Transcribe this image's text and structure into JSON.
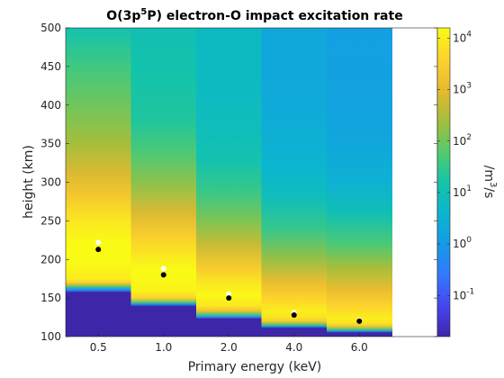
{
  "chart_data": {
    "type": "heatmap",
    "title": "O(3p",
    "title_sup": "5",
    "title_rest": "P) electron-O impact excitation rate",
    "xlabel": "Primary energy (keV)",
    "ylabel": "height (km)",
    "colorbar_label_main": "/m",
    "colorbar_label_sup": "3",
    "colorbar_label_end": "/s",
    "scale": "log10",
    "clim_log10": [
      -1.8,
      4.2
    ],
    "ylim": [
      100,
      500
    ],
    "yticks": [
      100,
      150,
      200,
      250,
      300,
      350,
      400,
      450,
      500
    ],
    "ytick_labels": [
      "100",
      "150",
      "200",
      "250",
      "300",
      "350",
      "400",
      "450",
      "500"
    ],
    "colorbar_ticks": [
      {
        "exp": 4,
        "base": "10",
        "sup": "4"
      },
      {
        "exp": 3,
        "base": "10",
        "sup": "3"
      },
      {
        "exp": 2,
        "base": "10",
        "sup": "2"
      },
      {
        "exp": 1,
        "base": "10",
        "sup": "1"
      },
      {
        "exp": 0,
        "base": "10",
        "sup": "0"
      },
      {
        "exp": -1,
        "base": "10",
        "sup": "-1"
      }
    ],
    "categories": [
      "0.5",
      "1.0",
      "2.0",
      "4.0",
      "6.0"
    ],
    "columns": [
      {
        "energy": "0.5",
        "peak_height": 220,
        "cutoff_height": 158,
        "profile": [
          [
            100,
            -1.8
          ],
          [
            157,
            -1.8
          ],
          [
            160,
            -0.5
          ],
          [
            163,
            0.8
          ],
          [
            166,
            2.3
          ],
          [
            170,
            3.5
          ],
          [
            175,
            4.0
          ],
          [
            200,
            4.2
          ],
          [
            220,
            4.25
          ],
          [
            250,
            3.9
          ],
          [
            280,
            3.4
          ],
          [
            310,
            2.9
          ],
          [
            350,
            2.4
          ],
          [
            400,
            2.0
          ],
          [
            450,
            1.6
          ],
          [
            500,
            1.1
          ]
        ],
        "markers": [
          {
            "h": 222,
            "color": "white"
          },
          {
            "h": 213,
            "color": "black"
          }
        ]
      },
      {
        "energy": "1.0",
        "peak_height": 185,
        "cutoff_height": 140,
        "profile": [
          [
            100,
            -1.8
          ],
          [
            139,
            -1.8
          ],
          [
            142,
            0.0
          ],
          [
            145,
            2.0
          ],
          [
            150,
            3.6
          ],
          [
            160,
            4.1
          ],
          [
            185,
            4.2
          ],
          [
            200,
            4.0
          ],
          [
            230,
            3.5
          ],
          [
            260,
            2.9
          ],
          [
            300,
            2.2
          ],
          [
            340,
            1.7
          ],
          [
            380,
            1.3
          ],
          [
            440,
            1.15
          ],
          [
            500,
            1.0
          ]
        ],
        "markers": [
          {
            "h": 188,
            "color": "white"
          },
          {
            "h": 180,
            "color": "black"
          }
        ]
      },
      {
        "energy": "2.0",
        "peak_height": 153,
        "cutoff_height": 124,
        "profile": [
          [
            100,
            -1.8
          ],
          [
            123,
            -1.8
          ],
          [
            125,
            -0.5
          ],
          [
            128,
            1.5
          ],
          [
            133,
            3.2
          ],
          [
            140,
            3.9
          ],
          [
            153,
            4.15
          ],
          [
            170,
            3.9
          ],
          [
            190,
            3.4
          ],
          [
            220,
            2.7
          ],
          [
            250,
            2.1
          ],
          [
            290,
            1.5
          ],
          [
            330,
            1.1
          ],
          [
            370,
            0.9
          ],
          [
            420,
            0.8
          ],
          [
            460,
            0.8
          ],
          [
            500,
            0.8
          ]
        ],
        "markers": [
          {
            "h": 155,
            "color": "white"
          },
          {
            "h": 150,
            "color": "black"
          }
        ]
      },
      {
        "energy": "4.0",
        "peak_height": 129,
        "cutoff_height": 112,
        "profile": [
          [
            100,
            -1.8
          ],
          [
            111,
            -1.8
          ],
          [
            113,
            0.0
          ],
          [
            116,
            2.0
          ],
          [
            120,
            3.4
          ],
          [
            126,
            3.9
          ],
          [
            133,
            4.0
          ],
          [
            150,
            3.6
          ],
          [
            170,
            3.1
          ],
          [
            200,
            2.3
          ],
          [
            240,
            1.5
          ],
          [
            280,
            0.9
          ],
          [
            320,
            0.6
          ],
          [
            380,
            0.4
          ],
          [
            440,
            0.3
          ],
          [
            500,
            0.3
          ]
        ],
        "markers": [
          {
            "h": 131,
            "color": "white"
          },
          {
            "h": 128,
            "color": "black"
          }
        ]
      },
      {
        "energy": "6.0",
        "peak_height": 120,
        "cutoff_height": 106,
        "profile": [
          [
            100,
            -1.8
          ],
          [
            105,
            -1.8
          ],
          [
            107,
            0.0
          ],
          [
            110,
            2.0
          ],
          [
            114,
            3.4
          ],
          [
            118,
            3.9
          ],
          [
            124,
            4.0
          ],
          [
            140,
            3.6
          ],
          [
            160,
            3.1
          ],
          [
            190,
            2.4
          ],
          [
            220,
            1.7
          ],
          [
            260,
            1.0
          ],
          [
            300,
            0.5
          ],
          [
            360,
            0.25
          ],
          [
            420,
            0.15
          ],
          [
            500,
            0.1
          ]
        ],
        "markers": [
          {
            "h": 121,
            "color": "white"
          },
          {
            "h": 120,
            "color": "black"
          }
        ]
      }
    ]
  }
}
